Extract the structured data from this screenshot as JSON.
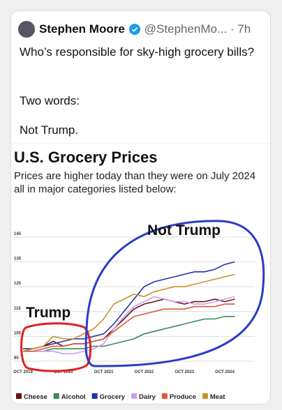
{
  "tweet": {
    "name": "Stephen Moore",
    "meta": "@StephenMo... · 7h",
    "lines": [
      "Who’s responsible for sky-high grocery bills?",
      "Two words:",
      "Not Trump."
    ]
  },
  "chart_data": {
    "type": "line",
    "title": "U.S. Grocery Prices",
    "subtitle": "Prices are higher today than they were on July 2024 all in major categories listed below:",
    "annotations": [
      "Trump",
      "Not Trump"
    ],
    "categories": [
      "OCT 2019",
      null,
      null,
      null,
      "OCT 2020",
      null,
      null,
      null,
      "OCT 2021",
      null,
      null,
      null,
      "OCT 2022",
      null,
      null,
      null,
      "OCT 2023",
      null,
      null,
      null,
      "OCT 2024",
      null
    ],
    "ylim": [
      95,
      145
    ],
    "yticks": [
      95,
      105,
      115,
      125,
      135,
      145
    ],
    "grid": true,
    "series": [
      {
        "name": "Cheese",
        "color": "#6b0f1a",
        "values": [
          99,
          100,
          101,
          103,
          101,
          102,
          102,
          103,
          104,
          108,
          112,
          116,
          118,
          119,
          120,
          119,
          118,
          119,
          119,
          120,
          119,
          120
        ]
      },
      {
        "name": "Alcohol",
        "color": "#3a8a5a",
        "values": [
          99,
          99,
          99,
          100,
          100,
          100,
          100,
          101,
          101,
          102,
          103,
          104,
          106,
          107,
          108,
          109,
          110,
          111,
          112,
          112,
          113,
          113
        ]
      },
      {
        "name": "Grocery",
        "color": "#2233aa",
        "values": [
          100,
          100,
          101,
          102,
          103,
          104,
          104,
          105,
          106,
          110,
          115,
          120,
          125,
          127,
          128,
          129,
          130,
          131,
          131,
          132,
          134,
          135
        ]
      },
      {
        "name": "Dairy",
        "color": "#c9a0f0",
        "values": [
          99,
          99,
          99,
          99,
          98,
          98,
          99,
          100,
          102,
          108,
          113,
          117,
          119,
          121,
          120,
          119,
          119,
          118,
          118,
          119,
          120,
          121
        ]
      },
      {
        "name": "Produce",
        "color": "#e05a3a",
        "values": [
          99,
          99,
          100,
          101,
          101,
          102,
          102,
          103,
          104,
          107,
          110,
          113,
          114,
          115,
          116,
          116,
          116,
          117,
          117,
          117,
          118,
          118
        ]
      },
      {
        "name": "Meat",
        "color": "#c8922a",
        "values": [
          99,
          100,
          101,
          105,
          104,
          104,
          106,
          108,
          112,
          118,
          120,
          122,
          121,
          123,
          124,
          125,
          125,
          126,
          127,
          128,
          129,
          130
        ]
      }
    ]
  }
}
